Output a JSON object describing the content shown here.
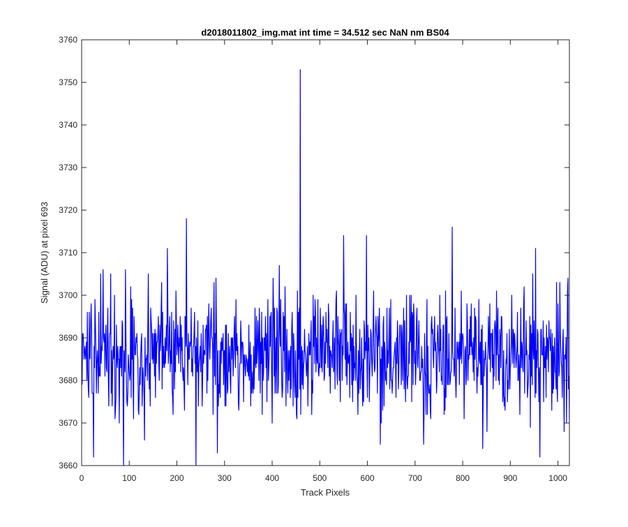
{
  "chart_data": {
    "type": "line",
    "title": "d2018011802_img.mat int time = 34.512 sec  NaN nm BS04",
    "xlabel": "Track Pixels",
    "ylabel": "Signal (ADU) at pixel 693",
    "xlim": [
      0,
      1024
    ],
    "ylim": [
      3660,
      3760
    ],
    "xticks": [
      "0",
      "100",
      "200",
      "300",
      "400",
      "500",
      "600",
      "700",
      "800",
      "900",
      "1000"
    ],
    "yticks": [
      "3660",
      "3670",
      "3680",
      "3690",
      "3700",
      "3710",
      "3720",
      "3730",
      "3740",
      "3750",
      "3760"
    ],
    "grid": false,
    "legend": "none",
    "series": [
      {
        "color": "#0000ff",
        "points_count": 1024,
        "noise_mean": 3686,
        "noise_std": 7,
        "seed": 693,
        "anchors": [
          {
            "x": 2,
            "y": 3691
          },
          {
            "x": 25,
            "y": 3662
          },
          {
            "x": 40,
            "y": 3705
          },
          {
            "x": 45,
            "y": 3706
          },
          {
            "x": 88,
            "y": 3660
          },
          {
            "x": 92,
            "y": 3706
          },
          {
            "x": 180,
            "y": 3711
          },
          {
            "x": 220,
            "y": 3718
          },
          {
            "x": 240,
            "y": 3660
          },
          {
            "x": 285,
            "y": 3663
          },
          {
            "x": 415,
            "y": 3707
          },
          {
            "x": 459,
            "y": 3753
          },
          {
            "x": 550,
            "y": 3714
          },
          {
            "x": 598,
            "y": 3714
          },
          {
            "x": 627,
            "y": 3665
          },
          {
            "x": 718,
            "y": 3665
          },
          {
            "x": 778,
            "y": 3716
          },
          {
            "x": 842,
            "y": 3664
          },
          {
            "x": 953,
            "y": 3711
          },
          {
            "x": 962,
            "y": 3662
          },
          {
            "x": 1018,
            "y": 3670
          },
          {
            "x": 1024,
            "y": 3670
          }
        ]
      }
    ]
  }
}
